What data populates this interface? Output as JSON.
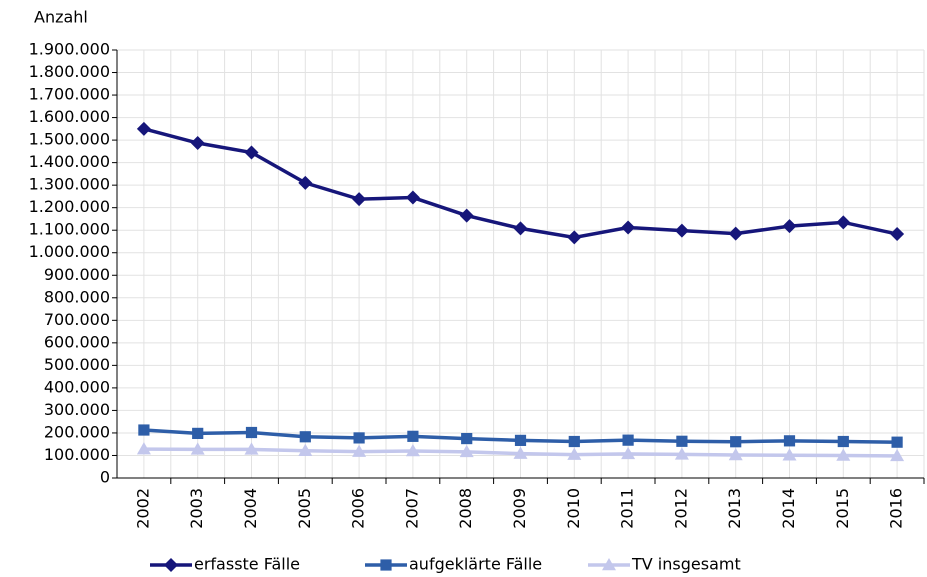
{
  "chart_data": {
    "type": "line",
    "y_axis_label": "Anzahl",
    "categories": [
      "2002",
      "2003",
      "2004",
      "2005",
      "2006",
      "2007",
      "2008",
      "2009",
      "2010",
      "2011",
      "2012",
      "2013",
      "2014",
      "2015",
      "2016"
    ],
    "series": [
      {
        "name": "erfasste Fälle",
        "color": "#16167a",
        "marker": "diamond",
        "values": [
          1550000,
          1487000,
          1445000,
          1310000,
          1238000,
          1245000,
          1165000,
          1108000,
          1068000,
          1112000,
          1098000,
          1085000,
          1118000,
          1135000,
          1083000
        ]
      },
      {
        "name": "aufgeklärte Fälle",
        "color": "#2e5ea8",
        "marker": "square",
        "values": [
          213000,
          198000,
          202000,
          183000,
          178000,
          185000,
          175000,
          167000,
          162000,
          168000,
          163000,
          161000,
          165000,
          162000,
          159000
        ]
      },
      {
        "name": "TV insgesamt",
        "color": "#c3c7ec",
        "marker": "triangle",
        "values": [
          128000,
          127000,
          127000,
          121000,
          117000,
          120000,
          116000,
          108000,
          104000,
          107000,
          105000,
          102000,
          101000,
          100000,
          98000
        ]
      }
    ],
    "ylim": [
      0,
      1900000
    ],
    "yticks": [
      0,
      {
        "value": 100000,
        "label": "100.000"
      },
      {
        "value": 200000,
        "label": "200.000"
      },
      {
        "value": 300000,
        "label": "300.000"
      },
      {
        "value": 400000,
        "label": "400.000"
      },
      {
        "value": 500000,
        "label": "500.000"
      },
      {
        "value": 600000,
        "label": "600.000"
      },
      {
        "value": 700000,
        "label": "700.000"
      },
      {
        "value": 800000,
        "label": "800.000"
      },
      {
        "value": 900000,
        "label": "900.000"
      },
      {
        "value": 1000000,
        "label": "1.000.000"
      },
      {
        "value": 1100000,
        "label": "1.100.000"
      },
      {
        "value": 1200000,
        "label": "1.200.000"
      },
      {
        "value": 1300000,
        "label": "1.300.000"
      },
      {
        "value": 1400000,
        "label": "1.400.000"
      },
      {
        "value": 1500000,
        "label": "1.500.000"
      },
      {
        "value": 1600000,
        "label": "1.600.000"
      },
      {
        "value": 1700000,
        "label": "1.700.000"
      },
      {
        "value": 1800000,
        "label": "1.800.000"
      },
      {
        "value": 1900000,
        "label": "1.900.000"
      }
    ],
    "grid": true,
    "legend": "bottom"
  }
}
